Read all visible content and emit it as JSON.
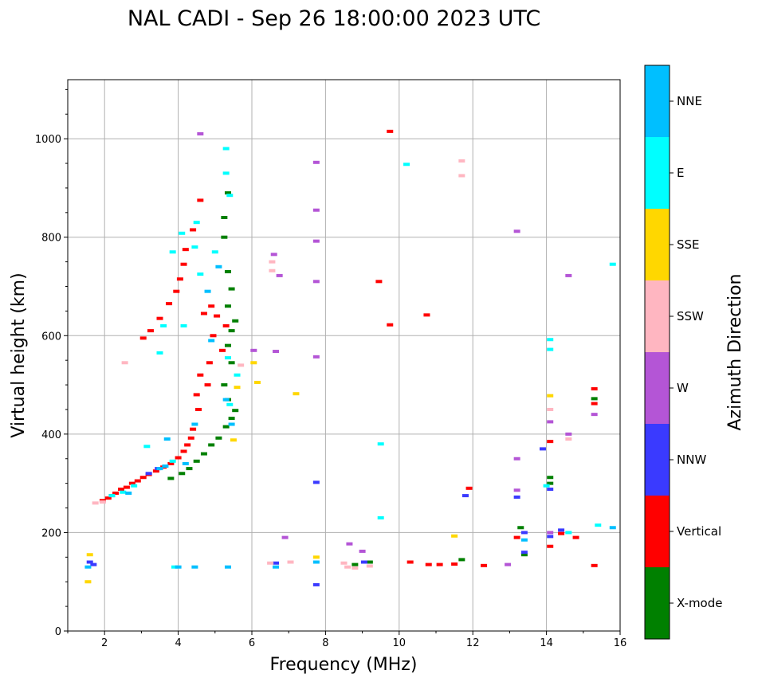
{
  "chart_data": {
    "type": "scatter",
    "title": "NAL CADI - Sep 26 18:00:00 2023 UTC",
    "xlabel": "Frequency (MHz)",
    "ylabel": "Virtual height (km)",
    "xlim": [
      1,
      16
    ],
    "ylim": [
      0,
      1120
    ],
    "xticks": [
      2,
      4,
      6,
      8,
      10,
      12,
      14,
      16
    ],
    "yticks": [
      0,
      200,
      400,
      600,
      800,
      1000
    ],
    "grid": true,
    "colorbar": {
      "title": "Azimuth Direction",
      "categories": [
        {
          "label": "X-mode",
          "color": "#008000"
        },
        {
          "label": "Vertical",
          "color": "#ff0000"
        },
        {
          "label": "NNW",
          "color": "#3a3aff"
        },
        {
          "label": "W",
          "color": "#b455d6"
        },
        {
          "label": "SSW",
          "color": "#ffb6c1"
        },
        {
          "label": "SSE",
          "color": "#ffd700"
        },
        {
          "label": "E",
          "color": "#00ffff"
        },
        {
          "label": "NNE",
          "color": "#00bfff"
        }
      ]
    },
    "series": [
      {
        "name": "Vertical",
        "color": "#ff0000",
        "points": [
          [
            1.95,
            265
          ],
          [
            2.1,
            270
          ],
          [
            2.2,
            275
          ],
          [
            2.3,
            280
          ],
          [
            2.45,
            288
          ],
          [
            2.6,
            292
          ],
          [
            2.75,
            300
          ],
          [
            2.9,
            305
          ],
          [
            3.05,
            312
          ],
          [
            3.2,
            318
          ],
          [
            3.4,
            325
          ],
          [
            3.6,
            333
          ],
          [
            3.8,
            340
          ],
          [
            4.0,
            352
          ],
          [
            4.15,
            365
          ],
          [
            4.25,
            378
          ],
          [
            4.35,
            392
          ],
          [
            4.4,
            410
          ],
          [
            3.05,
            595
          ],
          [
            3.25,
            610
          ],
          [
            3.5,
            635
          ],
          [
            3.75,
            665
          ],
          [
            3.95,
            690
          ],
          [
            4.05,
            715
          ],
          [
            4.15,
            745
          ],
          [
            4.2,
            775
          ],
          [
            4.4,
            815
          ],
          [
            4.6,
            875
          ],
          [
            4.55,
            450
          ],
          [
            4.5,
            480
          ],
          [
            4.6,
            520
          ],
          [
            4.8,
            500
          ],
          [
            4.85,
            545
          ],
          [
            4.95,
            600
          ],
          [
            5.05,
            640
          ],
          [
            5.2,
            570
          ],
          [
            5.3,
            620
          ],
          [
            4.7,
            645
          ],
          [
            4.9,
            660
          ],
          [
            9.75,
            1015
          ],
          [
            9.45,
            710
          ],
          [
            9.75,
            622
          ],
          [
            10.75,
            642
          ],
          [
            10.3,
            140
          ],
          [
            10.8,
            135
          ],
          [
            11.1,
            135
          ],
          [
            11.5,
            136
          ],
          [
            12.3,
            133
          ],
          [
            11.9,
            290
          ],
          [
            13.2,
            190
          ],
          [
            14.1,
            385
          ],
          [
            14.1,
            172
          ],
          [
            14.4,
            198
          ],
          [
            14.8,
            190
          ],
          [
            15.3,
            492
          ],
          [
            15.3,
            462
          ],
          [
            15.3,
            133
          ]
        ]
      },
      {
        "name": "X-mode",
        "color": "#008000",
        "points": [
          [
            3.8,
            310
          ],
          [
            4.1,
            320
          ],
          [
            4.3,
            330
          ],
          [
            4.5,
            345
          ],
          [
            4.7,
            360
          ],
          [
            4.9,
            378
          ],
          [
            5.1,
            392
          ],
          [
            5.3,
            415
          ],
          [
            5.45,
            432
          ],
          [
            5.55,
            448
          ],
          [
            5.35,
            470
          ],
          [
            5.25,
            500
          ],
          [
            5.45,
            545
          ],
          [
            5.35,
            580
          ],
          [
            5.45,
            610
          ],
          [
            5.55,
            630
          ],
          [
            5.35,
            660
          ],
          [
            5.45,
            695
          ],
          [
            5.35,
            730
          ],
          [
            5.25,
            800
          ],
          [
            5.25,
            840
          ],
          [
            5.35,
            890
          ],
          [
            8.8,
            135
          ],
          [
            9.2,
            140
          ],
          [
            11.7,
            145
          ],
          [
            13.4,
            155
          ],
          [
            14.1,
            312
          ],
          [
            14.1,
            300
          ],
          [
            15.3,
            472
          ],
          [
            13.3,
            210
          ]
        ]
      },
      {
        "name": "NNW",
        "color": "#3a3aff",
        "points": [
          [
            1.6,
            140
          ],
          [
            1.7,
            135
          ],
          [
            3.2,
            320
          ],
          [
            3.45,
            330
          ],
          [
            6.65,
            138
          ],
          [
            7.75,
            94
          ],
          [
            7.75,
            302
          ],
          [
            9.05,
            140
          ],
          [
            11.8,
            275
          ],
          [
            13.2,
            272
          ],
          [
            13.4,
            200
          ],
          [
            13.4,
            160
          ],
          [
            13.9,
            370
          ],
          [
            14.1,
            288
          ],
          [
            14.1,
            192
          ],
          [
            14.4,
            205
          ]
        ]
      },
      {
        "name": "W",
        "color": "#b455d6",
        "points": [
          [
            6.6,
            765
          ],
          [
            6.75,
            722
          ],
          [
            6.05,
            570
          ],
          [
            6.65,
            568
          ],
          [
            7.75,
            855
          ],
          [
            7.75,
            792
          ],
          [
            7.75,
            710
          ],
          [
            7.75,
            557
          ],
          [
            8.65,
            177
          ],
          [
            9.0,
            162
          ],
          [
            12.95,
            135
          ],
          [
            13.2,
            812
          ],
          [
            13.2,
            350
          ],
          [
            13.2,
            286
          ],
          [
            14.1,
            425
          ],
          [
            14.1,
            200
          ],
          [
            14.6,
            400
          ],
          [
            14.6,
            722
          ],
          [
            15.3,
            440
          ],
          [
            4.6,
            1010
          ],
          [
            6.9,
            190
          ],
          [
            7.75,
            952
          ]
        ]
      },
      {
        "name": "SSW",
        "color": "#ffb6c1",
        "points": [
          [
            1.75,
            260
          ],
          [
            1.95,
            262
          ],
          [
            2.55,
            545
          ],
          [
            6.55,
            750
          ],
          [
            6.55,
            732
          ],
          [
            6.5,
            138
          ],
          [
            8.5,
            138
          ],
          [
            8.6,
            130
          ],
          [
            8.8,
            128
          ],
          [
            9.2,
            132
          ],
          [
            11.7,
            955
          ],
          [
            11.7,
            925
          ],
          [
            14.1,
            450
          ],
          [
            14.6,
            390
          ],
          [
            5.7,
            540
          ],
          [
            7.05,
            140
          ]
        ]
      },
      {
        "name": "SSE",
        "color": "#ffd700",
        "points": [
          [
            1.55,
            100
          ],
          [
            1.6,
            155
          ],
          [
            6.05,
            545
          ],
          [
            6.15,
            505
          ],
          [
            7.2,
            482
          ],
          [
            7.75,
            150
          ],
          [
            11.5,
            193
          ],
          [
            14.1,
            478
          ],
          [
            5.5,
            388
          ],
          [
            5.6,
            495
          ]
        ]
      },
      {
        "name": "E",
        "color": "#00ffff",
        "points": [
          [
            2.2,
            275
          ],
          [
            2.5,
            282
          ],
          [
            2.8,
            295
          ],
          [
            3.15,
            375
          ],
          [
            3.5,
            565
          ],
          [
            3.6,
            620
          ],
          [
            3.85,
            770
          ],
          [
            4.1,
            808
          ],
          [
            4.5,
            830
          ],
          [
            4.6,
            725
          ],
          [
            5.0,
            770
          ],
          [
            5.3,
            980
          ],
          [
            5.3,
            930
          ],
          [
            5.4,
            885
          ],
          [
            4.15,
            620
          ],
          [
            4.45,
            780
          ],
          [
            5.35,
            555
          ],
          [
            5.6,
            520
          ],
          [
            5.4,
            460
          ],
          [
            9.5,
            380
          ],
          [
            9.5,
            230
          ],
          [
            10.2,
            948
          ],
          [
            14.0,
            295
          ],
          [
            14.1,
            592
          ],
          [
            14.1,
            572
          ],
          [
            14.6,
            200
          ],
          [
            15.4,
            215
          ],
          [
            15.8,
            745
          ],
          [
            3.85,
            345
          ],
          [
            3.9,
            130
          ]
        ]
      },
      {
        "name": "NNE",
        "color": "#00bfff",
        "points": [
          [
            1.55,
            130
          ],
          [
            2.65,
            280
          ],
          [
            3.5,
            330
          ],
          [
            3.7,
            390
          ],
          [
            3.65,
            335
          ],
          [
            4.2,
            340
          ],
          [
            4.45,
            420
          ],
          [
            4.8,
            690
          ],
          [
            4.9,
            590
          ],
          [
            5.1,
            740
          ],
          [
            5.3,
            470
          ],
          [
            5.45,
            420
          ],
          [
            4.0,
            130
          ],
          [
            4.45,
            130
          ],
          [
            5.35,
            130
          ],
          [
            6.65,
            130
          ],
          [
            7.75,
            140
          ],
          [
            13.4,
            185
          ],
          [
            15.8,
            210
          ]
        ]
      }
    ]
  }
}
